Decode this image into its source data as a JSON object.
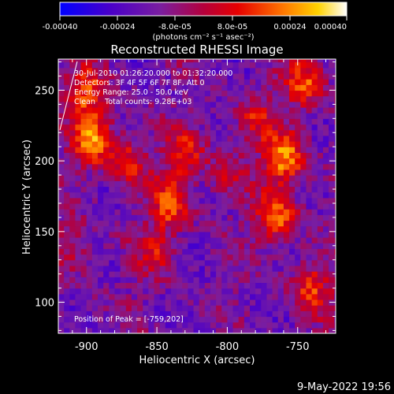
{
  "chart_data": {
    "type": "heatmap",
    "title": "Reconstructed RHESSI Image",
    "colorbar": {
      "ticks": [
        "-0.00040",
        "-0.00024",
        "-8.0e-05",
        "8.0e-05",
        "0.00024",
        "0.00040"
      ],
      "range": [
        -0.0004,
        0.0004
      ],
      "units_label": "(photons cm⁻² s⁻¹ asec⁻²)",
      "colormap": [
        "#0000ff",
        "#4b00c8",
        "#7a1ea0",
        "#b4003c",
        "#e60000",
        "#ff7800",
        "#ffd200",
        "#ffffff"
      ]
    },
    "xlabel": "Heliocentric X (arcsec)",
    "ylabel": "Heliocentric Y (arcsec)",
    "xlim": [
      -920,
      -723
    ],
    "ylim": [
      78,
      272
    ],
    "xticks": [
      -900,
      -850,
      -800,
      -750
    ],
    "yticks": [
      100,
      150,
      200,
      250
    ],
    "annotations": [
      "30-Jul-2010 01:26:20.000 to 01:32:20.000",
      "Detectors: 3F 4F 5F 6F 7F 8F, Att 0",
      "Energy Range: 25.0 - 50.0 keV",
      "Clean    Total counts: 9.28E+03"
    ],
    "peak_label": "Position of Peak = [-759,202]",
    "hot_spots": [
      {
        "x": -895,
        "y": 215,
        "value": 0.00038
      },
      {
        "x": -900,
        "y": 248,
        "value": 0.0003
      },
      {
        "x": -870,
        "y": 200,
        "value": 0.00022
      },
      {
        "x": -830,
        "y": 205,
        "value": 0.00024
      },
      {
        "x": -840,
        "y": 170,
        "value": 0.0003
      },
      {
        "x": -852,
        "y": 135,
        "value": 0.00018
      },
      {
        "x": -800,
        "y": 190,
        "value": 0.00014
      },
      {
        "x": -780,
        "y": 230,
        "value": 0.00018
      },
      {
        "x": -759,
        "y": 202,
        "value": 0.0004
      },
      {
        "x": -765,
        "y": 160,
        "value": 0.00034
      },
      {
        "x": -745,
        "y": 255,
        "value": 0.0003
      },
      {
        "x": -740,
        "y": 110,
        "value": 0.00026
      },
      {
        "x": -910,
        "y": 140,
        "value": 0.00016
      }
    ],
    "grid": false
  },
  "timestamp": "9-May-2022 19:56"
}
